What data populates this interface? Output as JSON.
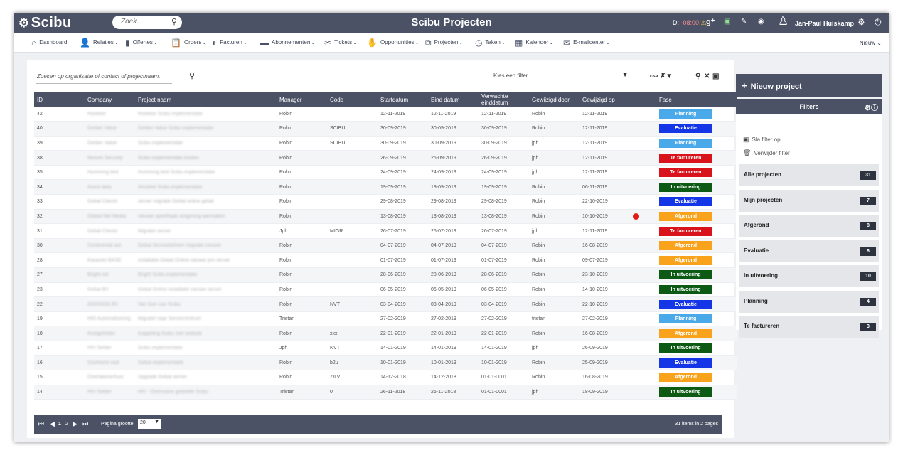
{
  "app": {
    "logo": "Scibu",
    "title": "Scibu Projecten",
    "search_placeholder": "Zoek...",
    "clock_prefix": "D:",
    "clock_value": "-08:00",
    "user_name": "Jan-Paul Huiskamp"
  },
  "nav": {
    "items": [
      {
        "label": "Dashboard",
        "icon": "home-icon"
      },
      {
        "label": "Relaties",
        "icon": "users-icon"
      },
      {
        "label": "Offertes",
        "icon": "document-icon"
      },
      {
        "label": "Orders",
        "icon": "clipboard-icon"
      },
      {
        "label": "Facturen",
        "icon": "coin-icon"
      },
      {
        "label": "Abonnementen",
        "icon": "folder-icon"
      },
      {
        "label": "Tickets",
        "icon": "tools-icon"
      },
      {
        "label": "Opportunities",
        "icon": "handshake-icon"
      },
      {
        "label": "Projecten",
        "icon": "network-icon"
      },
      {
        "label": "Taken",
        "icon": "clock-icon"
      },
      {
        "label": "Kalender",
        "icon": "calendar-icon"
      },
      {
        "label": "E-mailcenter",
        "icon": "envelope-icon"
      }
    ],
    "new_label": "Nieuw"
  },
  "grid": {
    "search_placeholder": "Zoeken op organisatie of contact of projectnaam.",
    "filter_placeholder": "Kies een filter",
    "columns": [
      "ID",
      "Company",
      "Project naam",
      "Manager",
      "Code",
      "Startdatum",
      "Eind datum",
      "Verwachte einddatum",
      "Gewijzigd door",
      "Gewijzigd op",
      "",
      "Fase"
    ],
    "rows": [
      {
        "id": "42",
        "company": "Hoekker",
        "project": "Hoekker Scibu implementatie",
        "manager": "Robin",
        "code": "",
        "start": "12-11-2019",
        "end": "12-11-2019",
        "expected": "12-11-2019",
        "changed_by": "Robin",
        "changed_on": "12-11-2019",
        "alert": "",
        "fase": "Planning"
      },
      {
        "id": "40",
        "company": "Gerber Value",
        "project": "Gerber Value Scibu implementatie",
        "manager": "Robin",
        "code": "SCIBU",
        "start": "30-09-2019",
        "end": "30-09-2019",
        "expected": "30-09-2019",
        "changed_by": "Robin",
        "changed_on": "12-11-2019",
        "alert": "",
        "fase": "Evaluatie"
      },
      {
        "id": "39",
        "company": "Gerber Value",
        "project": "Scibu implementatie",
        "manager": "Robin",
        "code": "SCIBU",
        "start": "30-09-2019",
        "end": "30-09-2019",
        "expected": "30-09-2019",
        "changed_by": "jph",
        "changed_on": "12-11-2019",
        "alert": "",
        "fase": "Planning"
      },
      {
        "id": "38",
        "company": "Novum Security",
        "project": "Scibu implementatie kosten",
        "manager": "Robin",
        "code": "",
        "start": "26-09-2019",
        "end": "26-09-2019",
        "expected": "26-09-2019",
        "changed_by": "jph",
        "changed_on": "12-11-2019",
        "alert": "",
        "fase": "Te factureren"
      },
      {
        "id": "35",
        "company": "Humming bird",
        "project": "Humming bird Scibu implementatie",
        "manager": "Robin",
        "code": "",
        "start": "24-09-2019",
        "end": "24-09-2019",
        "expected": "24-09-2019",
        "changed_by": "jph",
        "changed_on": "12-11-2019",
        "alert": "",
        "fase": "Te factureren"
      },
      {
        "id": "34",
        "company": "Anext data",
        "project": "Amsteel Scibu implementatie",
        "manager": "Robin",
        "code": "",
        "start": "19-09-2019",
        "end": "19-09-2019",
        "expected": "19-09-2019",
        "changed_by": "Robin",
        "changed_on": "06-11-2019",
        "alert": "",
        "fase": "In uitvoering"
      },
      {
        "id": "33",
        "company": "Gebal Clients",
        "project": "server migratie Gebal online gebal",
        "manager": "Robin",
        "code": "",
        "start": "29-08-2019",
        "end": "29-08-2019",
        "expected": "29-08-2019",
        "changed_by": "Robin",
        "changed_on": "22-10-2019",
        "alert": "",
        "fase": "Evaluatie"
      },
      {
        "id": "32",
        "company": "Global Net Media",
        "project": "nieuwe speelhaak omgeving aanmaken",
        "manager": "Robin",
        "code": "",
        "start": "13-08-2019",
        "end": "13-08-2019",
        "expected": "13-08-2019",
        "changed_by": "Robin",
        "changed_on": "10-10-2019",
        "alert": "!",
        "fase": "Afgerond"
      },
      {
        "id": "31",
        "company": "Gebal Clients",
        "project": "Migratie server",
        "manager": "Jph",
        "code": "MIGR",
        "start": "26-07-2019",
        "end": "26-07-2019",
        "expected": "26-07-2019",
        "changed_by": "jph",
        "changed_on": "12-11-2019",
        "alert": "",
        "fase": "Te factureren"
      },
      {
        "id": "30",
        "company": "Continental aut.",
        "project": "Gebal Servicebeheer migratie nieuwe",
        "manager": "Robin",
        "code": "",
        "start": "04-07-2019",
        "end": "04-07-2019",
        "expected": "04-07-2019",
        "changed_by": "Robin",
        "changed_on": "16-08-2019",
        "alert": "",
        "fase": "Afgerond"
      },
      {
        "id": "28",
        "company": "Kasamin BASE",
        "project": "installatie Gebal Online nieuwe pro server",
        "manager": "Robin",
        "code": "",
        "start": "01-07-2019",
        "end": "01-07-2019",
        "expected": "01-07-2019",
        "changed_by": "Robin",
        "changed_on": "09-07-2019",
        "alert": "",
        "fase": "Afgerond"
      },
      {
        "id": "27",
        "company": "Bright net",
        "project": "Bright Scibu implementatie",
        "manager": "Robin",
        "code": "",
        "start": "28-06-2019",
        "end": "28-06-2019",
        "expected": "28-06-2019",
        "changed_by": "Robin",
        "changed_on": "23-10-2019",
        "alert": "",
        "fase": "In uitvoering"
      },
      {
        "id": "23",
        "company": "Gebal BV",
        "project": "Gebal Online installatie nieuwe server",
        "manager": "Robin",
        "code": "",
        "start": "06-05-2019",
        "end": "06-05-2019",
        "expected": "06-05-2019",
        "changed_by": "Robin",
        "changed_on": "14-10-2019",
        "alert": "",
        "fase": "In uitvoering"
      },
      {
        "id": "22",
        "company": "ADDISON BV",
        "project": "Van Gen van Scibu",
        "manager": "Robin",
        "code": "NVT",
        "start": "03-04-2019",
        "end": "03-04-2019",
        "expected": "03-04-2019",
        "changed_by": "Robin",
        "changed_on": "22-10-2019",
        "alert": "",
        "fase": "Evaluatie"
      },
      {
        "id": "19",
        "company": "HIG Automatisering",
        "project": "Migratie naar Servercentrum",
        "manager": "Tristan",
        "code": "",
        "start": "27-02-2019",
        "end": "27-02-2019",
        "expected": "27-02-2019",
        "changed_by": "tristan",
        "changed_on": "27-02-2019",
        "alert": "",
        "fase": "Planning"
      },
      {
        "id": "18",
        "company": "Anelgeheller",
        "project": "Koppeling Scibu met website",
        "manager": "Robin",
        "code": "xxx",
        "start": "22-01-2019",
        "end": "22-01-2019",
        "expected": "22-01-2019",
        "changed_by": "Robin",
        "changed_on": "16-08-2019",
        "alert": "",
        "fase": "Afgerond"
      },
      {
        "id": "17",
        "company": "HIV Selder",
        "project": "Scibu implementatie",
        "manager": "Jph",
        "code": "NVT",
        "start": "14-01-2019",
        "end": "14-01-2019",
        "expected": "14-01-2019",
        "changed_by": "jph",
        "changed_on": "26-09-2019",
        "alert": "",
        "fase": "In uitvoering"
      },
      {
        "id": "16",
        "company": "Duinhorst vast",
        "project": "Gebal implementatie",
        "manager": "Robin",
        "code": "b2u",
        "start": "10-01-2019",
        "end": "10-01-2019",
        "expected": "10-01-2019",
        "changed_by": "Robin",
        "changed_on": "25-09-2019",
        "alert": "",
        "fase": "Evaluatie"
      },
      {
        "id": "15",
        "company": "Overlakeverhuis",
        "project": "Upgrade Gebal server",
        "manager": "Robin",
        "code": "ZILV",
        "start": "14-12-2018",
        "end": "14-12-2018",
        "expected": "01-01-0001",
        "changed_by": "Robin",
        "changed_on": "16-08-2019",
        "alert": "",
        "fase": "Afgerond"
      },
      {
        "id": "14",
        "company": "HIV Selder",
        "project": "HIV - Overname gedeelte Scibu",
        "manager": "Tristan",
        "code": "0",
        "start": "26-11-2018",
        "end": "26-11-2018",
        "expected": "01-01-0001",
        "changed_by": "jph",
        "changed_on": "18-09-2019",
        "alert": "",
        "fase": "In uitvoering"
      }
    ],
    "fase_colors": {
      "Planning": "#4aa9e8",
      "Evaluatie": "#1536e6",
      "Te factureren": "#d8131b",
      "In uitvoering": "#0c5a14",
      "Afgerond": "#f9a21b"
    }
  },
  "pager": {
    "pages": [
      "1",
      "2"
    ],
    "page_size_label": "Pagina grootte:",
    "page_size": "20",
    "items_info": "31 items in 2 pages"
  },
  "sidebar": {
    "new_project": "Nieuw project",
    "filters_title": "Filters",
    "save_filter": "Sla filter op",
    "delete_filter": "Verwijder filter",
    "categories": [
      {
        "label": "Alle projecten",
        "count": "31"
      },
      {
        "label": "Mijn projecten",
        "count": "7"
      },
      {
        "label": "Afgerond",
        "count": "8"
      },
      {
        "label": "Evaluatie",
        "count": "6"
      },
      {
        "label": "In uitvoering",
        "count": "10"
      },
      {
        "label": "Planning",
        "count": "4"
      },
      {
        "label": "Te factureren",
        "count": "3"
      }
    ]
  }
}
